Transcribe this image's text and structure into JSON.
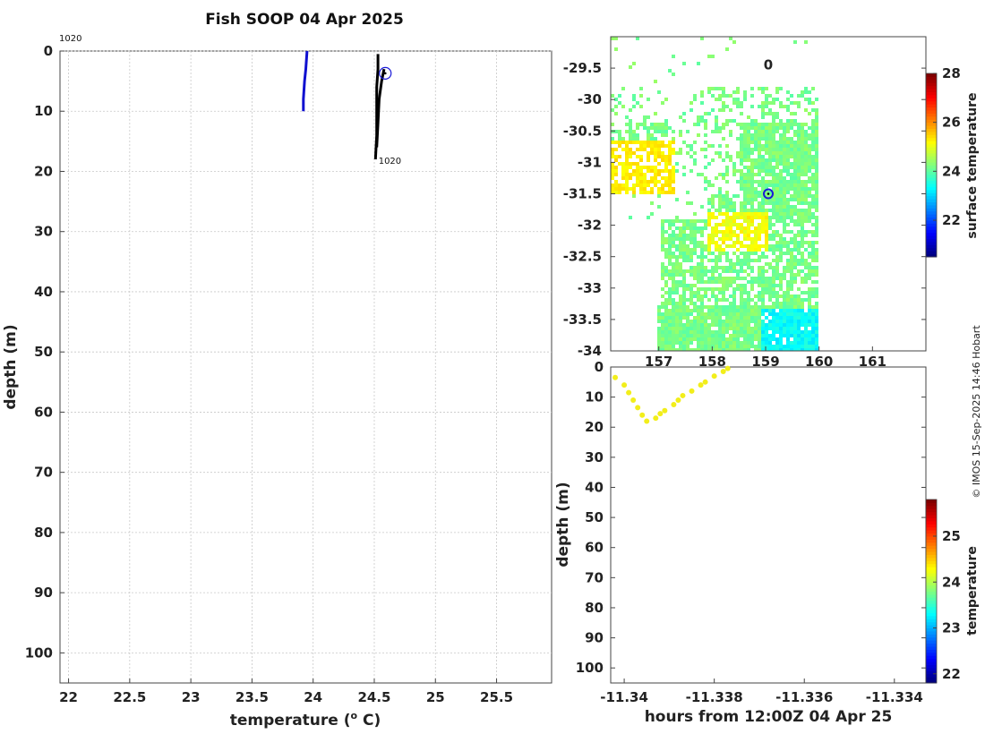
{
  "title": "Fish SOOP 04 Apr 2025",
  "credit": "© IMOS 15-Sep-2025 14:46 Hobart",
  "colors": {
    "profile_blue": "#1010d0",
    "profile_black": "#000000",
    "marker": "#1a1ad8",
    "yellow_dots": "#f2ee1a",
    "grid": "#c8c8c8"
  },
  "chart_data": [
    {
      "type": "line",
      "name": "profile",
      "xlabel": "temperature (o C)",
      "xlabel_parts": {
        "pre": "temperature (",
        "sup": "o",
        "post": " C)"
      },
      "ylabel": "depth (m)",
      "xlim": [
        21.93,
        25.95
      ],
      "ylim": [
        105,
        0
      ],
      "x_ticks": [
        "22",
        "22.5",
        "23",
        "23.5",
        "24",
        "24.5",
        "25",
        "25.5"
      ],
      "x_tick_values": [
        22,
        22.5,
        23,
        23.5,
        24,
        24.5,
        25,
        25.5
      ],
      "y_ticks": [
        "0",
        "10",
        "20",
        "30",
        "40",
        "50",
        "60",
        "70",
        "80",
        "90",
        "100"
      ],
      "y_tick_values": [
        0,
        10,
        20,
        30,
        40,
        50,
        60,
        70,
        80,
        90,
        100
      ],
      "grid": true,
      "annotations": [
        {
          "text": "1020",
          "at": "top-left"
        },
        {
          "text": "1020",
          "x": 24.52,
          "y": 18
        }
      ],
      "series": [
        {
          "color": "#1010d0",
          "points": [
            [
              23.95,
              0
            ],
            [
              23.94,
              3
            ],
            [
              23.93,
              5
            ],
            [
              23.92,
              8
            ],
            [
              23.92,
              10
            ]
          ]
        },
        {
          "color": "#000000",
          "points": [
            [
              24.53,
              0.5
            ],
            [
              24.53,
              3
            ],
            [
              24.52,
              6
            ],
            [
              24.52,
              10
            ],
            [
              24.52,
              14
            ],
            [
              24.51,
              18
            ]
          ]
        },
        {
          "color": "#000000",
          "points": [
            [
              24.58,
              3
            ],
            [
              24.56,
              5
            ],
            [
              24.54,
              8
            ],
            [
              24.53,
              12
            ],
            [
              24.52,
              16
            ]
          ]
        }
      ],
      "marker": {
        "x": 24.59,
        "y": 3.7
      }
    },
    {
      "type": "heatmap",
      "name": "surface-temperature-map",
      "xlim": [
        156.1,
        162.0
      ],
      "ylim": [
        -34.0,
        -29.0
      ],
      "x_ticks": [
        "157",
        "158",
        "159",
        "160",
        "161"
      ],
      "x_tick_values": [
        157,
        158,
        159,
        160,
        161
      ],
      "y_ticks": [
        "-29.5",
        "-30",
        "-30.5",
        "-31",
        "-31.5",
        "-32",
        "-32.5",
        "-33",
        "-33.5",
        "-34"
      ],
      "y_tick_values": [
        -29.5,
        -30,
        -30.5,
        -31,
        -31.5,
        -32,
        -32.5,
        -33,
        -33.5,
        -34
      ],
      "colorbar": {
        "label": "surface temperature",
        "range": [
          20.5,
          28
        ],
        "ticks": [
          "22",
          "24",
          "26",
          "28"
        ],
        "tick_values": [
          22,
          24,
          26,
          28
        ]
      },
      "annotations": [
        {
          "text": "0",
          "lon": 159.05,
          "lat": -29.45
        }
      ],
      "marker": {
        "lon": 159.05,
        "lat": -31.5
      }
    },
    {
      "type": "scatter",
      "name": "depth-time",
      "xlabel": "hours from 12:00Z 04 Apr 25",
      "ylabel": "depth (m)",
      "xlim": [
        -11.3403,
        -11.3333
      ],
      "ylim": [
        105,
        0
      ],
      "x_ticks": [
        "-11.34",
        "-11.338",
        "-11.336",
        "-11.334"
      ],
      "x_tick_values": [
        -11.34,
        -11.338,
        -11.336,
        -11.334
      ],
      "y_ticks": [
        "0",
        "10",
        "20",
        "30",
        "40",
        "50",
        "60",
        "70",
        "80",
        "90",
        "100"
      ],
      "y_tick_values": [
        0,
        10,
        20,
        30,
        40,
        50,
        60,
        70,
        80,
        90,
        100
      ],
      "colorbar": {
        "label": "temperature",
        "range": [
          21.8,
          25.8
        ],
        "ticks": [
          "22",
          "23",
          "24",
          "25"
        ],
        "tick_values": [
          22,
          23,
          24,
          25
        ]
      },
      "points": [
        [
          -11.3402,
          3.5
        ],
        [
          -11.34,
          6
        ],
        [
          -11.3399,
          8.5
        ],
        [
          -11.3398,
          11
        ],
        [
          -11.3397,
          13.5
        ],
        [
          -11.3396,
          16
        ],
        [
          -11.3395,
          18
        ],
        [
          -11.3393,
          17
        ],
        [
          -11.3392,
          15.5
        ],
        [
          -11.3391,
          14.5
        ],
        [
          -11.3389,
          12.5
        ],
        [
          -11.3388,
          11
        ],
        [
          -11.3387,
          9.5
        ],
        [
          -11.3385,
          8
        ],
        [
          -11.3383,
          6
        ],
        [
          -11.3382,
          5
        ],
        [
          -11.338,
          3
        ],
        [
          -11.3378,
          1.5
        ],
        [
          -11.3377,
          0.5
        ]
      ]
    }
  ]
}
